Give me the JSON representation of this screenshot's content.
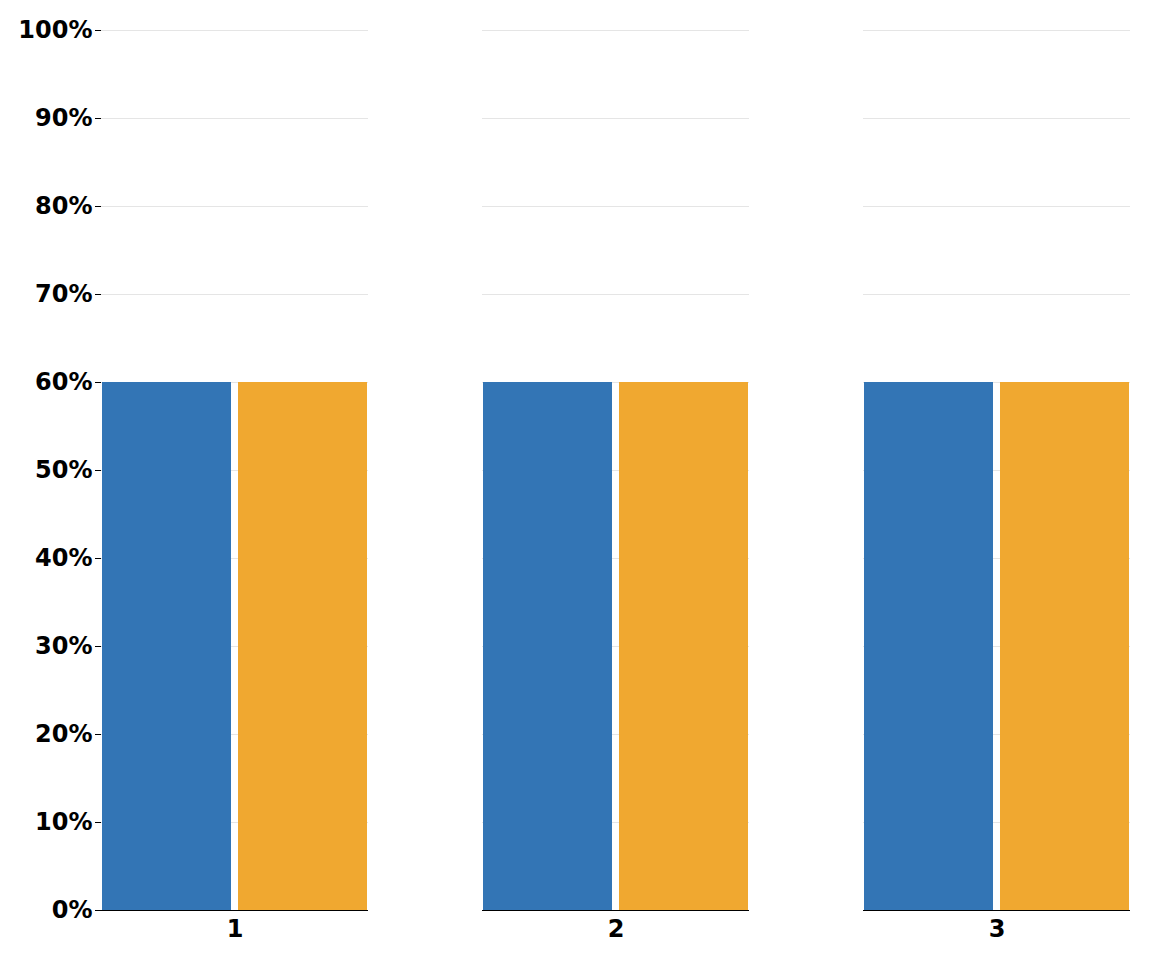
{
  "chart_data": {
    "type": "bar",
    "categories": [
      "1",
      "2",
      "3"
    ],
    "series": [
      {
        "color": "#3375B5",
        "values": [
          60,
          60,
          60
        ]
      },
      {
        "color": "#F0A830",
        "values": [
          60,
          60,
          60
        ]
      }
    ],
    "ylim": [
      0,
      100
    ],
    "yticks": [
      {
        "value": 0,
        "label": "0%"
      },
      {
        "value": 10,
        "label": "10%"
      },
      {
        "value": 20,
        "label": "20%"
      },
      {
        "value": 30,
        "label": "30%"
      },
      {
        "value": 40,
        "label": "40%"
      },
      {
        "value": 50,
        "label": "50%"
      },
      {
        "value": 60,
        "label": "60%"
      },
      {
        "value": 70,
        "label": "70%"
      },
      {
        "value": 80,
        "label": "80%"
      },
      {
        "value": 90,
        "label": "90%"
      },
      {
        "value": 100,
        "label": "100%"
      }
    ],
    "grid": true
  }
}
